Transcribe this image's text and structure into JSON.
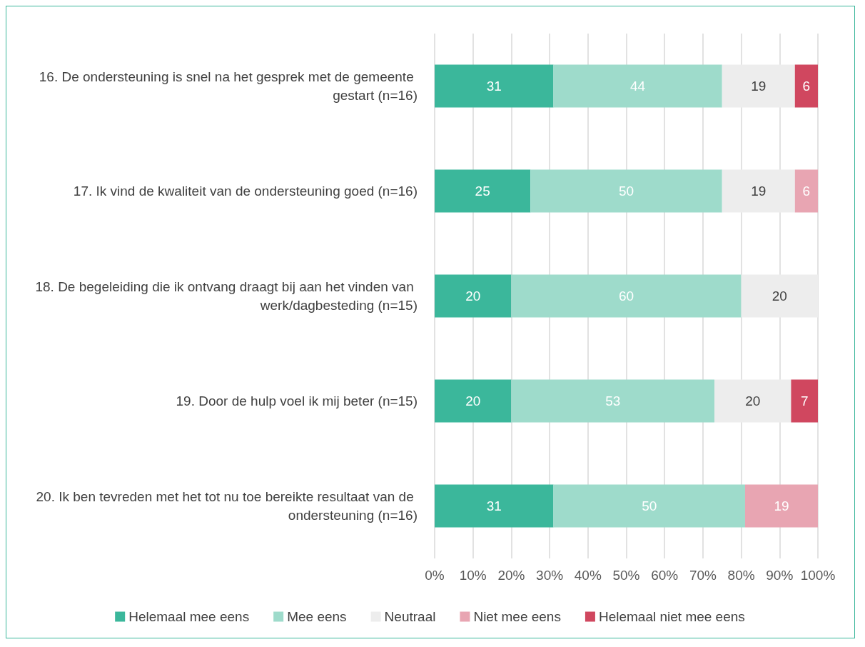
{
  "chart_data": {
    "type": "bar",
    "orientation": "horizontal",
    "stacked": true,
    "data_labels": true,
    "grid": "x",
    "legend": "bottom",
    "categories": [
      "16. De ondersteuning is snel na het gesprek met de gemeente gestart (n=16)",
      "17. Ik vind de kwaliteit van de ondersteuning goed (n=16)",
      "18. De begeleiding die ik ontvang draagt bij aan het vinden van werk/dagbesteding (n=15)",
      "19. Door de hulp voel ik mij beter (n=15)",
      "20. Ik ben tevreden met het tot nu toe bereikte resultaat van de ondersteuning (n=16)"
    ],
    "series": [
      {
        "name": "Helemaal mee eens",
        "color": "#3bb79b",
        "values": [
          31,
          25,
          20,
          20,
          31
        ]
      },
      {
        "name": "Mee eens",
        "color": "#9edbcb",
        "values": [
          44,
          50,
          60,
          53,
          50
        ]
      },
      {
        "name": "Neutraal",
        "color": "#ededed",
        "values": [
          19,
          19,
          20,
          20,
          null
        ]
      },
      {
        "name": "Niet mee eens",
        "color": "#e8a5b2",
        "values": [
          null,
          6,
          null,
          null,
          19
        ]
      },
      {
        "name": "Helemaal niet mee eens",
        "color": "#d0475f",
        "values": [
          6,
          null,
          null,
          7,
          null
        ]
      }
    ],
    "xlim": [
      0,
      100
    ],
    "xticks": [
      {
        "value": 0,
        "label": "0%"
      },
      {
        "value": 10,
        "label": "10%"
      },
      {
        "value": 20,
        "label": "20%"
      },
      {
        "value": 30,
        "label": "30%"
      },
      {
        "value": 40,
        "label": "40%"
      },
      {
        "value": 50,
        "label": "50%"
      },
      {
        "value": 60,
        "label": "60%"
      },
      {
        "value": 70,
        "label": "70%"
      },
      {
        "value": 80,
        "label": "80%"
      },
      {
        "value": 90,
        "label": "90%"
      },
      {
        "value": 100,
        "label": "100%"
      }
    ]
  }
}
